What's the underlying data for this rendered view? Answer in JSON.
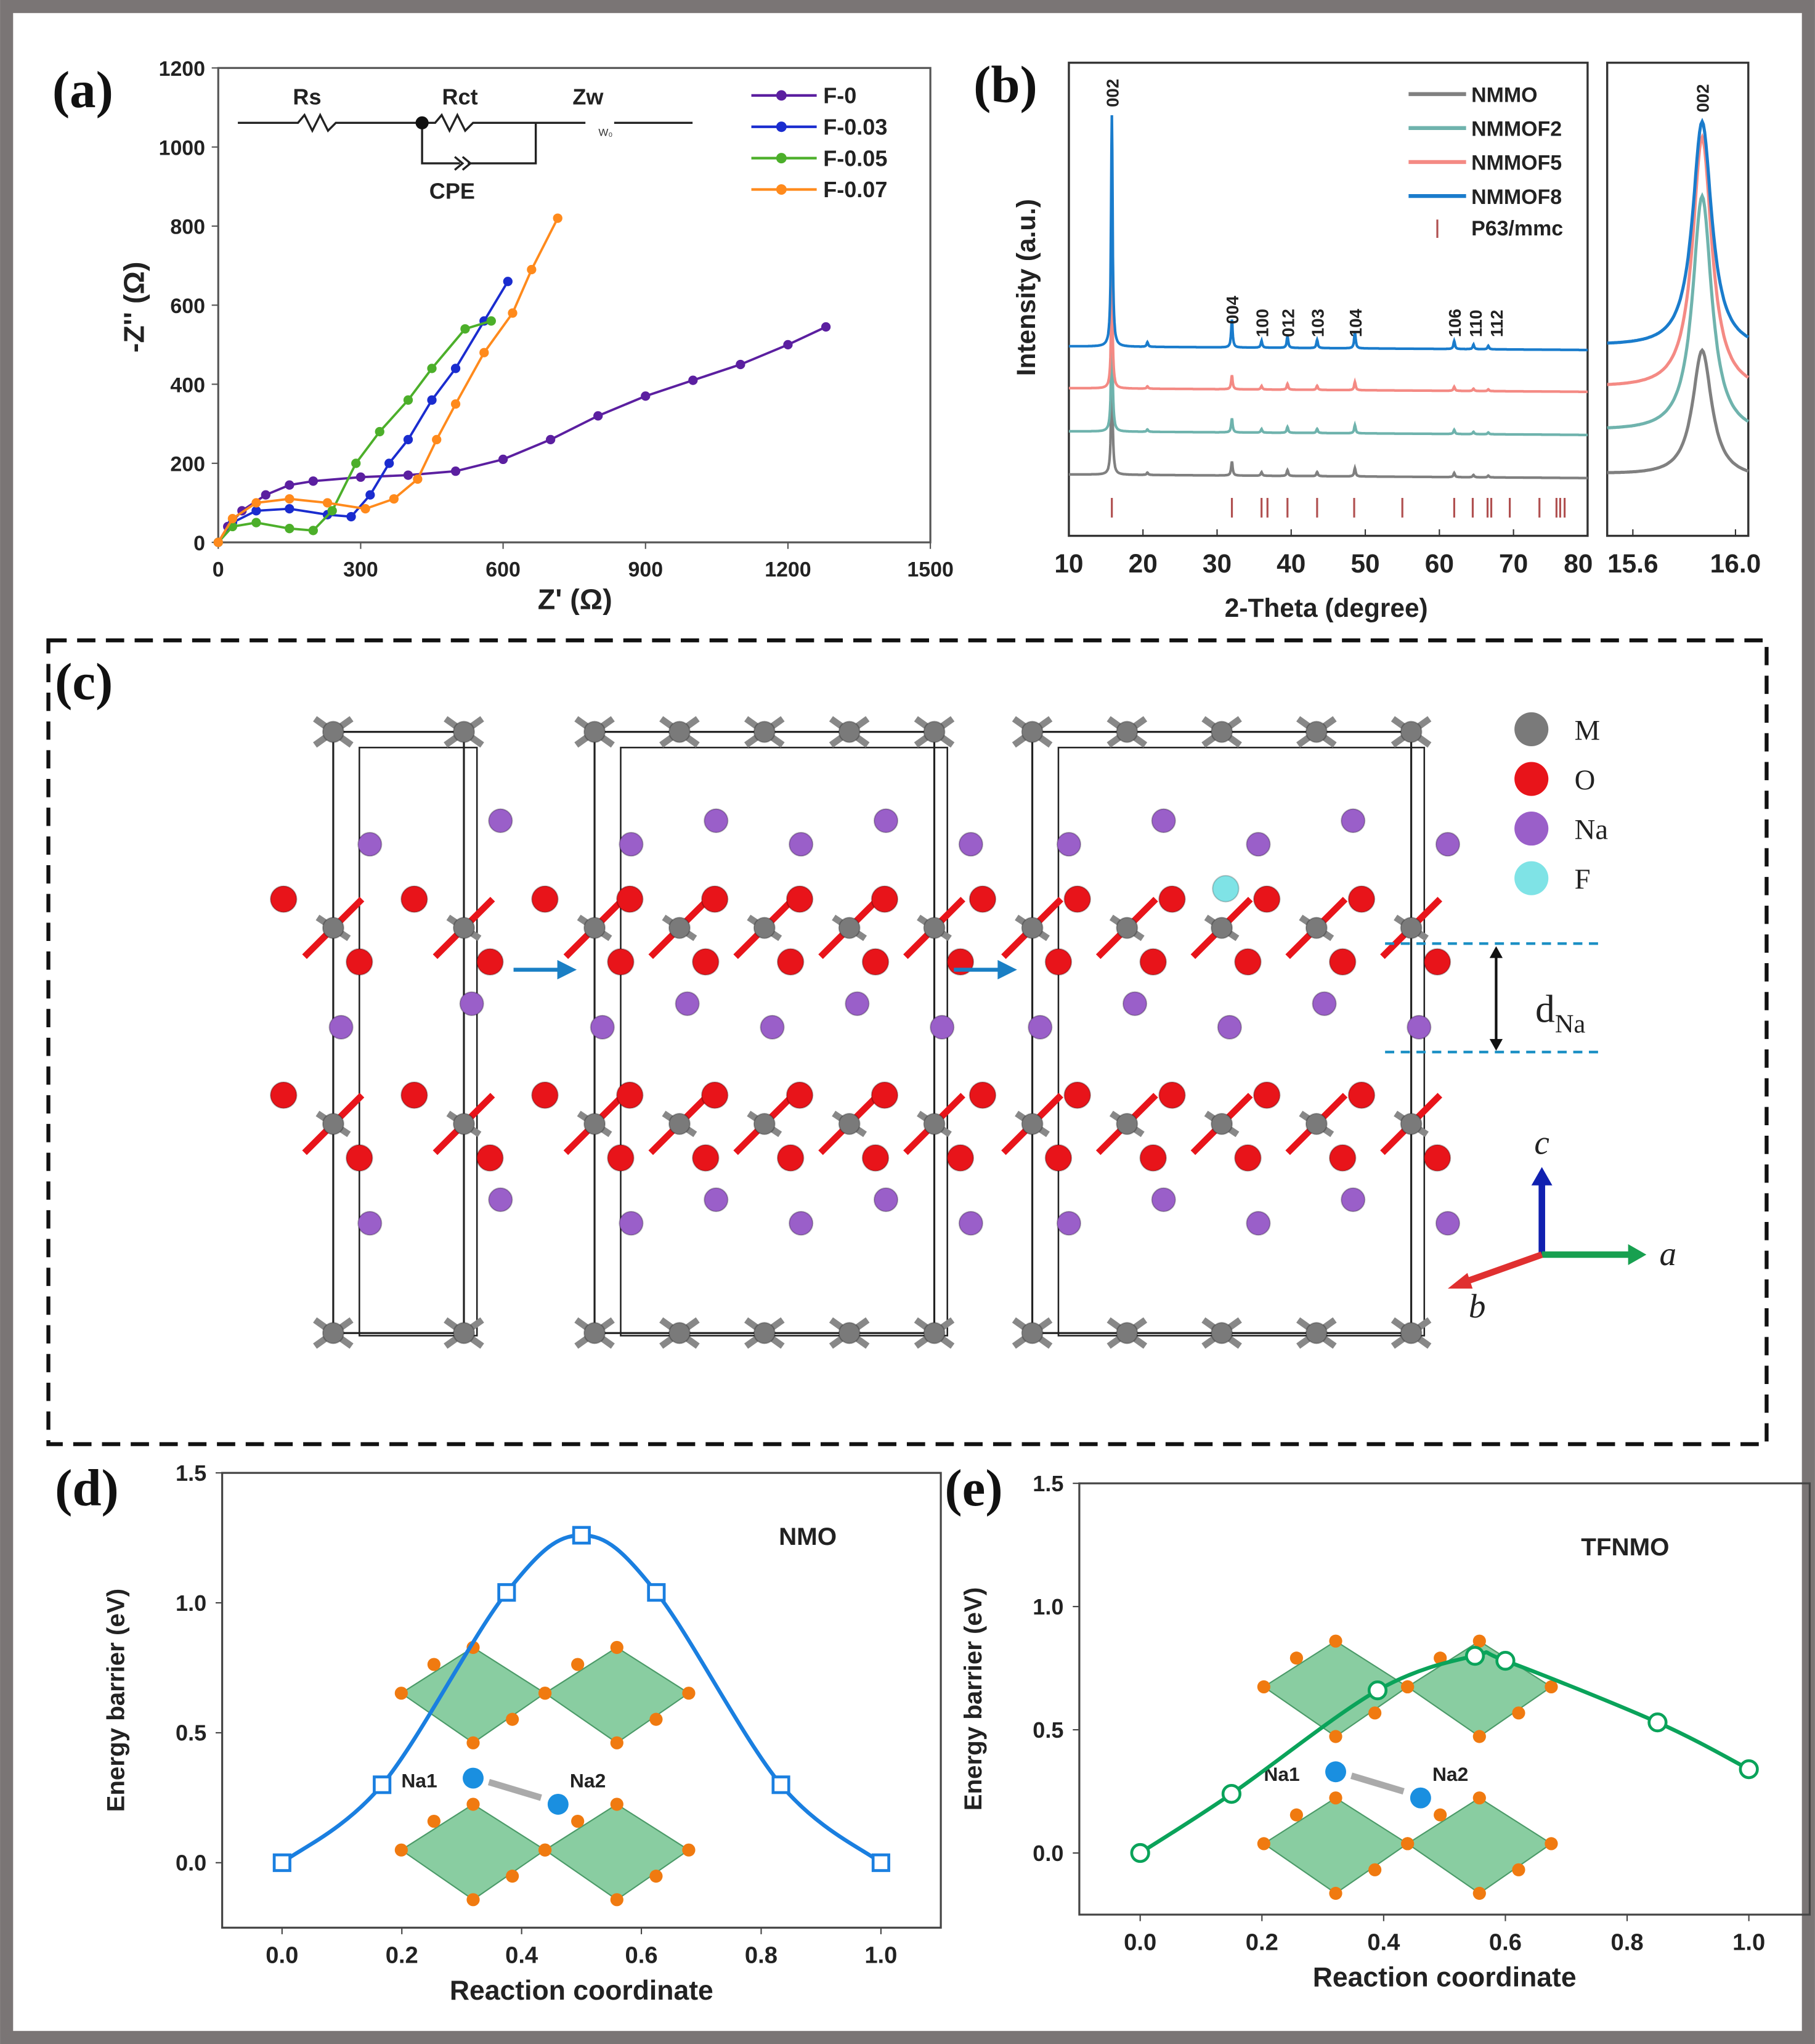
{
  "panels": {
    "a": "(a)",
    "b": "(b)",
    "c": "(c)",
    "d": "(d)",
    "e": "(e)"
  },
  "chart_data": [
    {
      "id": "a",
      "type": "line",
      "xlabel": "Z' (Ω)",
      "ylabel": "-Z'' (Ω)",
      "xlim": [
        0,
        1500
      ],
      "ylim": [
        0,
        1200
      ],
      "xticks": [
        "0",
        "300",
        "600",
        "900",
        "1200",
        "1500"
      ],
      "yticks": [
        "0",
        "200",
        "400",
        "600",
        "800",
        "1000",
        "1200"
      ],
      "circuit": {
        "rs": "Rs",
        "rct": "Rct",
        "zw": "Zw",
        "cpe": "CPE",
        "w": "W₀"
      },
      "legend_position": "top-right",
      "series": [
        {
          "name": "F-0",
          "color": "#5b1fa0",
          "x": [
            0,
            20,
            50,
            100,
            150,
            200,
            300,
            400,
            500,
            600,
            700,
            800,
            900,
            1000,
            1100,
            1200,
            1280
          ],
          "y": [
            0,
            40,
            80,
            120,
            145,
            155,
            165,
            170,
            180,
            210,
            260,
            320,
            370,
            410,
            450,
            500,
            545
          ]
        },
        {
          "name": "F-0.03",
          "color": "#1a2ccf",
          "x": [
            0,
            30,
            80,
            150,
            230,
            280,
            320,
            360,
            400,
            450,
            500,
            560,
            610
          ],
          "y": [
            0,
            50,
            80,
            85,
            70,
            65,
            120,
            200,
            260,
            360,
            440,
            560,
            660
          ]
        },
        {
          "name": "F-0.05",
          "color": "#4caf2a",
          "x": [
            0,
            30,
            80,
            150,
            200,
            240,
            290,
            340,
            400,
            450,
            520,
            575
          ],
          "y": [
            0,
            40,
            50,
            35,
            30,
            80,
            200,
            280,
            360,
            440,
            540,
            560
          ]
        },
        {
          "name": "F-0.07",
          "color": "#ff8a1c",
          "x": [
            0,
            30,
            80,
            150,
            230,
            310,
            370,
            420,
            460,
            500,
            560,
            620,
            660,
            715
          ],
          "y": [
            0,
            60,
            100,
            110,
            100,
            85,
            110,
            160,
            260,
            350,
            480,
            580,
            690,
            820
          ]
        }
      ]
    },
    {
      "id": "b",
      "type": "line",
      "xlabel": "2-Theta (degree)",
      "ylabel": "Intensity (a.u.)",
      "xlim": [
        10,
        80
      ],
      "xticks": [
        "10",
        "20",
        "30",
        "40",
        "50",
        "60",
        "70",
        "80"
      ],
      "inset_xlim": [
        15.5,
        16.05
      ],
      "inset_xticks": [
        "15.6",
        "16.0"
      ],
      "inset_peak_label": "002",
      "legend_position": "top-right",
      "series": [
        {
          "name": "NMMO",
          "color": "#808080"
        },
        {
          "name": "NMMOF2",
          "color": "#6fb3ad"
        },
        {
          "name": "NMMOF5",
          "color": "#f48a84"
        },
        {
          "name": "NMMOF8",
          "color": "#1a7ccc"
        }
      ],
      "reference": {
        "name": "P63/mmc",
        "color": "#b05050",
        "positions": [
          15.8,
          32,
          36,
          36.8,
          39.5,
          43.5,
          48.5,
          55,
          62,
          64.5,
          66.5,
          67,
          69.5,
          73.5,
          75.8,
          76.3,
          76.9
        ]
      },
      "peaks": [
        {
          "pos": 15.8,
          "rel": 1.0,
          "label": "002"
        },
        {
          "pos": 20.6,
          "rel": 0.02,
          "label": ""
        },
        {
          "pos": 32.0,
          "rel": 0.12,
          "label": "004"
        },
        {
          "pos": 36.0,
          "rel": 0.03,
          "label": "100"
        },
        {
          "pos": 39.5,
          "rel": 0.05,
          "label": "012"
        },
        {
          "pos": 43.5,
          "rel": 0.035,
          "label": "103"
        },
        {
          "pos": 48.6,
          "rel": 0.07,
          "label": "104"
        },
        {
          "pos": 62.0,
          "rel": 0.035,
          "label": "106"
        },
        {
          "pos": 64.6,
          "rel": 0.02,
          "label": "110"
        },
        {
          "pos": 66.6,
          "rel": 0.015,
          "label": "112"
        }
      ]
    },
    {
      "id": "d",
      "type": "line",
      "title": "NMO",
      "xlabel": "Reaction coordinate",
      "ylabel": "Energy barrier (eV)",
      "xlim": [
        -0.1,
        1.1
      ],
      "ylim": [
        -0.25,
        1.5
      ],
      "xticks": [
        "0.0",
        "0.2",
        "0.4",
        "0.6",
        "0.8",
        "1.0"
      ],
      "yticks": [
        "0.0",
        "0.5",
        "1.0",
        "1.5"
      ],
      "color": "#1a7fe0",
      "marker": "square",
      "x": [
        0,
        0.167,
        0.375,
        0.5,
        0.625,
        0.833,
        1.0
      ],
      "y": [
        0,
        0.3,
        1.04,
        1.26,
        1.04,
        0.3,
        0
      ],
      "inset": {
        "na1": "Na1",
        "na2": "Na2"
      }
    },
    {
      "id": "e",
      "type": "line",
      "title": "TFNMO",
      "xlabel": "Reaction coordinate",
      "ylabel": "Energy barrier (eV)",
      "xlim": [
        -0.1,
        1.1
      ],
      "ylim": [
        -0.25,
        1.5
      ],
      "xticks": [
        "0.0",
        "0.2",
        "0.4",
        "0.6",
        "0.8",
        "1.0"
      ],
      "yticks": [
        "0.0",
        "0.5",
        "1.0",
        "1.5"
      ],
      "color": "#0aa35a",
      "marker": "circle",
      "x": [
        0,
        0.15,
        0.39,
        0.55,
        0.6,
        0.85,
        1.0
      ],
      "y": [
        0,
        0.24,
        0.66,
        0.8,
        0.78,
        0.53,
        0.34
      ],
      "inset": {
        "na1": "Na1",
        "na2": "Na2"
      }
    }
  ],
  "structure": {
    "legend": [
      {
        "label": "M",
        "color": "#7a7a7a"
      },
      {
        "label": "O",
        "color": "#e8141a"
      },
      {
        "label": "Na",
        "color": "#9a5fc9"
      },
      {
        "label": "F",
        "color": "#7fe3e6"
      }
    ],
    "d_label": "d",
    "d_sub": "Na",
    "axes": {
      "c": "c",
      "a": "a",
      "b": "b"
    }
  }
}
